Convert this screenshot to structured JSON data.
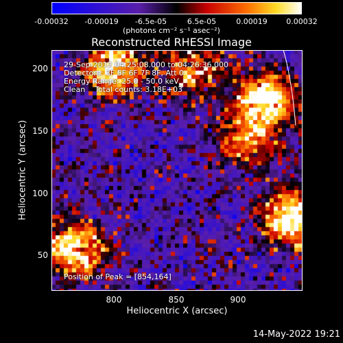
{
  "colorbar": {
    "ticks": [
      "-0.00032",
      "-0.00019",
      "-6.5e-05",
      "6.5e-05",
      "0.00019",
      "0.00032"
    ],
    "unit": "(photons cm⁻² s⁻¹ asec⁻²)",
    "range": [
      -0.00032,
      0.00032
    ]
  },
  "chart_data": {
    "type": "heatmap",
    "title": "Reconstructed RHESSI Image",
    "xlabel": "Heliocentric X (arcsec)",
    "ylabel": "Heliocentric Y (arcsec)",
    "xlim": [
      755,
      944
    ],
    "ylim": [
      20,
      213
    ],
    "xticks": [
      "800",
      "850",
      "900"
    ],
    "yticks": [
      "50",
      "100",
      "150",
      "200"
    ],
    "annotations": {
      "time": "29-Sep-2012 04:25:08.000 to 04:26:36.000",
      "detectors": "Detectors: 3F 5F 6F 7F 8F, Att 0",
      "energy": "Energy Range: 25.0 - 50.0 keV",
      "method": "Clean    Total counts: 3.18E+03",
      "peak": "Position of Peak = [854,164]"
    },
    "peak": [
      854,
      164
    ],
    "hot_regions": [
      {
        "x": 800,
        "y": 200,
        "level": 0.9
      },
      {
        "x": 915,
        "y": 175,
        "level": 1.0
      },
      {
        "x": 935,
        "y": 80,
        "level": 1.0
      },
      {
        "x": 770,
        "y": 55,
        "level": 0.9
      },
      {
        "x": 860,
        "y": 200,
        "level": 0.6
      },
      {
        "x": 900,
        "y": 140,
        "level": 0.55
      }
    ]
  },
  "footer": {
    "date": "14-May-2022 19:21"
  }
}
